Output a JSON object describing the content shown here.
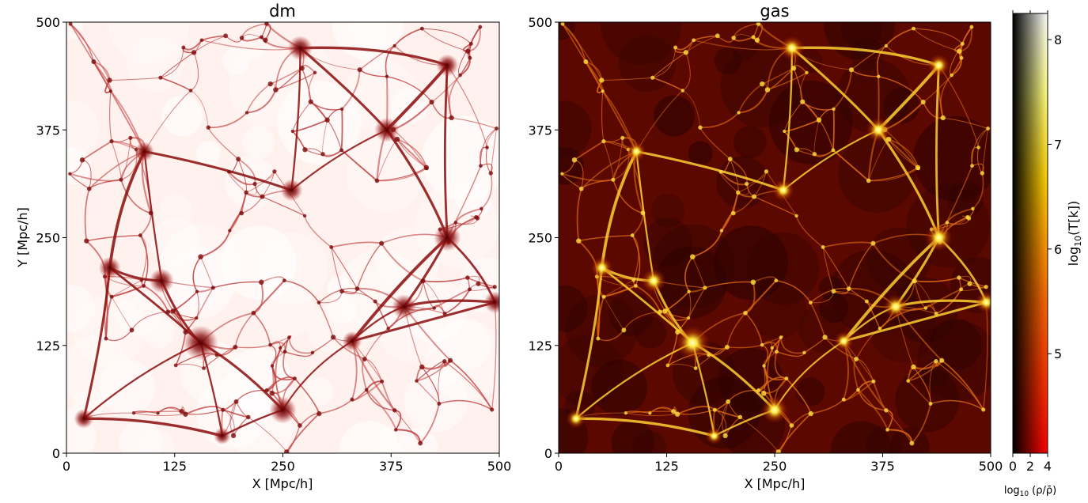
{
  "chart_data": [
    {
      "type": "heatmap",
      "title": "dm",
      "xlabel": "X [Mpc/h]",
      "ylabel": "Y [Mpc/h]",
      "xlim": [
        0,
        500
      ],
      "ylim": [
        0,
        500
      ],
      "xticks": [
        "0",
        "125",
        "250",
        "375",
        "500"
      ],
      "yticks": [
        "0",
        "125",
        "250",
        "375",
        "500"
      ],
      "colors": {
        "low": "#fff2ee",
        "mid": "#e8a8a0",
        "high": "#7a0a0a"
      },
      "clusters": [
        {
          "x": 155,
          "y": 128,
          "s": 1.0
        },
        {
          "x": 250,
          "y": 50,
          "s": 0.7
        },
        {
          "x": 370,
          "y": 375,
          "s": 0.6
        },
        {
          "x": 440,
          "y": 250,
          "s": 0.7
        },
        {
          "x": 110,
          "y": 200,
          "s": 0.6
        },
        {
          "x": 50,
          "y": 215,
          "s": 0.5
        },
        {
          "x": 270,
          "y": 470,
          "s": 0.6
        },
        {
          "x": 440,
          "y": 450,
          "s": 0.5
        },
        {
          "x": 390,
          "y": 170,
          "s": 0.6
        },
        {
          "x": 260,
          "y": 305,
          "s": 0.5
        },
        {
          "x": 90,
          "y": 350,
          "s": 0.4
        },
        {
          "x": 495,
          "y": 175,
          "s": 0.5
        },
        {
          "x": 20,
          "y": 40,
          "s": 0.4
        },
        {
          "x": 180,
          "y": 20,
          "s": 0.3
        },
        {
          "x": 330,
          "y": 130,
          "s": 0.4
        }
      ]
    },
    {
      "type": "heatmap",
      "title": "gas",
      "xlabel": "X [Mpc/h]",
      "ylabel": "",
      "xlim": [
        0,
        500
      ],
      "ylim": [
        0,
        500
      ],
      "xticks": [
        "0",
        "125",
        "250",
        "375",
        "500"
      ],
      "yticks": [
        "0",
        "125",
        "250",
        "375",
        "500"
      ],
      "colors": {
        "low": "#2a0200",
        "mid": "#9a1a00",
        "high": "#fff25a"
      }
    }
  ],
  "colorbar": {
    "label": "log10(T[k])",
    "label_main": "log",
    "label_sub": "10",
    "label_tail": "(T[k])",
    "range": [
      4.05,
      8.25
    ],
    "ticks": [
      "5",
      "6",
      "7",
      "8"
    ],
    "density_label_main": "log",
    "density_label_sub": "10",
    "density_label_tail": "(ρ/ρ̄)",
    "density_range": [
      0,
      4
    ],
    "density_ticks": [
      "0",
      "2",
      "4"
    ],
    "stops": [
      "#ff0000",
      "#ff6a00",
      "#ffd000",
      "#ffff60",
      "#ffffff"
    ]
  }
}
